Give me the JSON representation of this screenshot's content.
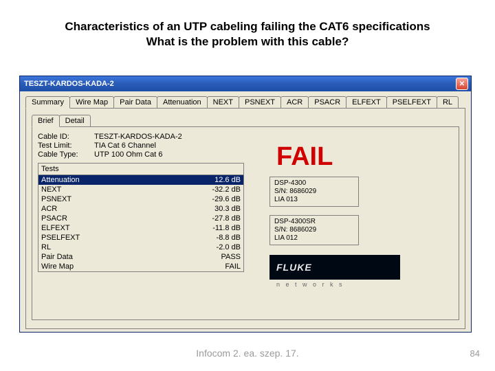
{
  "slide": {
    "title_line1": "Characteristics of an UTP cabeling failing the CAT6 specifications",
    "title_line2": "What is the problem with this cable?",
    "footer": "Infocom 2. ea. szep. 17.",
    "page": "84"
  },
  "window": {
    "title": "TESZT-KARDOS-KADA-2",
    "tabs": [
      "Summary",
      "Wire Map",
      "Pair Data",
      "Attenuation",
      "NEXT",
      "PSNEXT",
      "ACR",
      "PSACR",
      "ELFEXT",
      "PSELFEXT",
      "RL"
    ],
    "active_tab": 0,
    "sub_tabs": [
      "Brief",
      "Detail"
    ],
    "active_sub_tab": 0
  },
  "info": {
    "cable_id_label": "Cable ID:",
    "cable_id": "TESZT-KARDOS-KADA-2",
    "test_limit_label": "Test Limit:",
    "test_limit": "TIA Cat 6 Channel",
    "cable_type_label": "Cable Type:",
    "cable_type": "UTP 100 Ohm Cat 6"
  },
  "tests": {
    "header": "Tests",
    "rows": [
      {
        "name": "Attenuation",
        "val": "12.6 dB",
        "sel": true
      },
      {
        "name": "NEXT",
        "val": "-32.2 dB",
        "sel": false
      },
      {
        "name": "PSNEXT",
        "val": "-29.6 dB",
        "sel": false
      },
      {
        "name": "ACR",
        "val": "30.3 dB",
        "sel": false
      },
      {
        "name": "PSACR",
        "val": "-27.8 dB",
        "sel": false
      },
      {
        "name": "ELFEXT",
        "val": "-11.8 dB",
        "sel": false
      },
      {
        "name": "PSELFEXT",
        "val": "-8.8 dB",
        "sel": false
      },
      {
        "name": "RL",
        "val": "-2.0 dB",
        "sel": false
      },
      {
        "name": "Pair Data",
        "val": "PASS",
        "sel": false
      },
      {
        "name": "Wire Map",
        "val": "FAIL",
        "sel": false
      }
    ]
  },
  "status": {
    "big": "FAIL",
    "color": "#d00000"
  },
  "device_main": {
    "model": "DSP-4300",
    "sn_label": "S/N:",
    "sn": "8686029",
    "lia": "LIA 013"
  },
  "device_remote": {
    "model": "DSP-4300SR",
    "sn_label": "S/N:",
    "sn": "8686029",
    "lia": "LIA 012"
  },
  "brand": {
    "name": "FLUKE",
    "sub": "n e t w o r k s"
  },
  "colors": {
    "window_bg": "#ece9d8",
    "titlebar_grad_top": "#3b77dd",
    "titlebar_grad_bot": "#1f4fa8",
    "selection_bg": "#0a246a",
    "fail_red": "#d00000",
    "brand_bg": "#000814"
  }
}
